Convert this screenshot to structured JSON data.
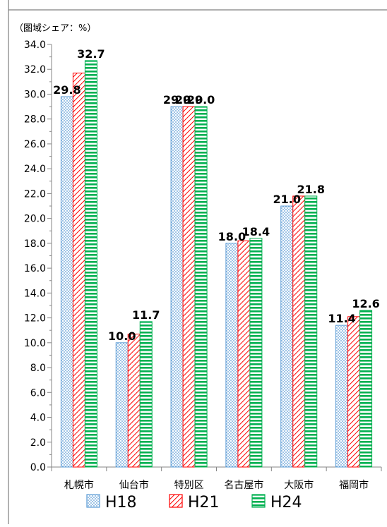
{
  "chart_data": {
    "type": "bar",
    "unit_label": "（圏域シェア：%）",
    "categories": [
      "札幌市",
      "仙台市",
      "特別区",
      "名古屋市",
      "大阪市",
      "福岡市"
    ],
    "series": [
      {
        "name": "H18",
        "values": [
          29.8,
          10.0,
          29.0,
          18.0,
          21.0,
          11.4
        ],
        "labels": [
          "29.8",
          "10.0",
          "29.0",
          "18.0",
          "21.0",
          "11.4"
        ],
        "color": "#5b9bd5",
        "pattern": "dots"
      },
      {
        "name": "H21",
        "values": [
          31.7,
          10.7,
          29.0,
          18.2,
          21.8,
          12.1
        ],
        "labels": [
          "",
          "",
          "29.0",
          "",
          "",
          ""
        ],
        "color": "#ff0000",
        "pattern": "diagonal"
      },
      {
        "name": "H24",
        "values": [
          32.7,
          11.7,
          29.0,
          18.4,
          21.8,
          12.6
        ],
        "labels": [
          "32.7",
          "11.7",
          "29.0",
          "18.4",
          "21.8",
          "12.6"
        ],
        "color": "#00b050",
        "pattern": "horizontal"
      }
    ],
    "ylim": [
      0,
      34
    ],
    "yticks": [
      "0.0",
      "2.0",
      "4.0",
      "6.0",
      "8.0",
      "10.0",
      "12.0",
      "14.0",
      "16.0",
      "18.0",
      "20.0",
      "22.0",
      "24.0",
      "26.0",
      "28.0",
      "30.0",
      "32.0",
      "34.0"
    ],
    "grid": false,
    "legend_position": "bottom"
  }
}
